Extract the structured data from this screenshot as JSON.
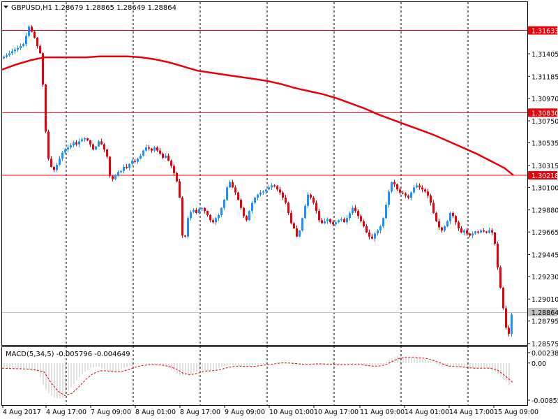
{
  "header": {
    "symbol": "GBPUSD,H1",
    "ohlc": "1.28679 1.28865 1.28649 1.28864"
  },
  "macd": {
    "label": "MACD(5,34,5) -0.005796 -0.004649",
    "ticks": [
      "0.002386",
      "0.00",
      "-0.008556"
    ]
  },
  "price_axis": {
    "ticks": [
      "1.31405",
      "1.31185",
      "1.30970",
      "1.30750",
      "1.30535",
      "1.30315",
      "1.30100",
      "1.29880",
      "1.29665",
      "1.29445",
      "1.29230",
      "1.29010",
      "1.28795",
      "1.28575"
    ],
    "current_price": "1.28864"
  },
  "levels": [
    {
      "label": "1.31633",
      "price": 1.31633
    },
    {
      "label": "1.30830",
      "price": 1.3083
    },
    {
      "label": "1.30218",
      "price": 1.30218
    }
  ],
  "time_axis": {
    "labels": [
      "4 Aug 2017",
      "4 Aug 17:00",
      "7 Aug 09:00",
      "8 Aug 01:00",
      "8 Aug 17:00",
      "9 Aug 09:00",
      "10 Aug 01:00",
      "10 Aug 17:00",
      "11 Aug 09:00",
      "14 Aug 01:00",
      "14 Aug 17:00",
      "15 Aug 09:00"
    ]
  },
  "colors": {
    "bull": "#1e90ff",
    "bear": "#e8000b",
    "level": "#e8000b",
    "ma": "#e8000b",
    "grid": "#000000",
    "macd_hist": "#c0c0c0",
    "macd_signal": "#e8000b"
  },
  "chart_data": {
    "type": "candlestick",
    "symbol": "GBPUSD",
    "timeframe": "H1",
    "ylim": [
      1.28575,
      1.3178
    ],
    "close_path": [
      [
        0,
        1.3136
      ],
      [
        8,
        1.3139
      ],
      [
        16,
        1.3143
      ],
      [
        24,
        1.3146
      ],
      [
        32,
        1.315
      ],
      [
        36,
        1.3158
      ],
      [
        40,
        1.3167
      ],
      [
        44,
        1.3162
      ],
      [
        48,
        1.3156
      ],
      [
        52,
        1.3148
      ],
      [
        56,
        1.3141
      ],
      [
        59,
        1.3139
      ],
      [
        61,
        1.3082
      ],
      [
        63,
        1.3072
      ],
      [
        65,
        1.3057
      ],
      [
        68,
        1.3038
      ],
      [
        72,
        1.303
      ],
      [
        76,
        1.3027
      ],
      [
        80,
        1.3032
      ],
      [
        84,
        1.3038
      ],
      [
        88,
        1.3044
      ],
      [
        92,
        1.3047
      ],
      [
        96,
        1.3049
      ],
      [
        100,
        1.3051
      ],
      [
        104,
        1.3054
      ],
      [
        108,
        1.3052
      ],
      [
        112,
        1.3055
      ],
      [
        116,
        1.3057
      ],
      [
        120,
        1.3058
      ],
      [
        124,
        1.3056
      ],
      [
        128,
        1.3052
      ],
      [
        132,
        1.3047
      ],
      [
        136,
        1.305
      ],
      [
        140,
        1.3055
      ],
      [
        144,
        1.3052
      ],
      [
        148,
        1.3047
      ],
      [
        152,
        1.304
      ],
      [
        156,
        1.3021
      ],
      [
        160,
        1.3018
      ],
      [
        164,
        1.3022
      ],
      [
        168,
        1.3025
      ],
      [
        172,
        1.3026
      ],
      [
        176,
        1.303
      ],
      [
        180,
        1.3029
      ],
      [
        184,
        1.3033
      ],
      [
        188,
        1.3036
      ],
      [
        192,
        1.3035
      ],
      [
        196,
        1.3038
      ],
      [
        200,
        1.3041
      ],
      [
        204,
        1.3046
      ],
      [
        208,
        1.3049
      ],
      [
        212,
        1.3048
      ],
      [
        216,
        1.3046
      ],
      [
        220,
        1.3049
      ],
      [
        224,
        1.3046
      ],
      [
        228,
        1.3043
      ],
      [
        232,
        1.3039
      ],
      [
        236,
        1.3041
      ],
      [
        240,
        1.3036
      ],
      [
        244,
        1.3031
      ],
      [
        248,
        1.3024
      ],
      [
        252,
        1.3016
      ],
      [
        256,
        1.3
      ],
      [
        258,
        1.2985
      ],
      [
        260,
        1.2963
      ],
      [
        262,
        1.2957
      ],
      [
        264,
        1.2962
      ],
      [
        266,
        1.297
      ],
      [
        268,
        1.298
      ],
      [
        272,
        1.2986
      ],
      [
        276,
        1.2988
      ],
      [
        280,
        1.2985
      ],
      [
        284,
        1.2989
      ],
      [
        288,
        1.299
      ],
      [
        292,
        1.2987
      ],
      [
        296,
        1.2983
      ],
      [
        300,
        1.2978
      ],
      [
        304,
        1.2976
      ],
      [
        308,
        1.298
      ],
      [
        312,
        1.2983
      ],
      [
        316,
        1.299
      ],
      [
        320,
        1.2998
      ],
      [
        324,
        1.301
      ],
      [
        328,
        1.3015
      ],
      [
        332,
        1.301
      ],
      [
        336,
        1.3005
      ],
      [
        340,
        1.2998
      ],
      [
        344,
        1.299
      ],
      [
        348,
        1.2982
      ],
      [
        352,
        1.2978
      ],
      [
        356,
        1.2987
      ],
      [
        360,
        1.2995
      ],
      [
        364,
        1.3
      ],
      [
        368,
        1.3003
      ],
      [
        372,
        1.3005
      ],
      [
        376,
        1.3006
      ],
      [
        380,
        1.3008
      ],
      [
        384,
        1.301
      ],
      [
        388,
        1.3012
      ],
      [
        392,
        1.3011
      ],
      [
        396,
        1.3008
      ],
      [
        400,
        1.3005
      ],
      [
        404,
        1.3
      ],
      [
        408,
        1.2995
      ],
      [
        412,
        1.2985
      ],
      [
        416,
        1.2975
      ],
      [
        420,
        1.297
      ],
      [
        424,
        1.2962
      ],
      [
        428,
        1.2968
      ],
      [
        432,
        1.298
      ],
      [
        436,
        1.2992
      ],
      [
        440,
        1.3003
      ],
      [
        444,
        1.3
      ],
      [
        448,
        1.2995
      ],
      [
        452,
        1.2987
      ],
      [
        456,
        1.2978
      ],
      [
        460,
        1.2975
      ],
      [
        464,
        1.2977
      ],
      [
        468,
        1.2979
      ],
      [
        472,
        1.2976
      ],
      [
        476,
        1.2974
      ],
      [
        480,
        1.2976
      ],
      [
        484,
        1.2978
      ],
      [
        488,
        1.2979
      ],
      [
        492,
        1.2976
      ],
      [
        496,
        1.298
      ],
      [
        500,
        1.2985
      ],
      [
        504,
        1.299
      ],
      [
        508,
        1.2987
      ],
      [
        512,
        1.2982
      ],
      [
        516,
        1.2977
      ],
      [
        520,
        1.2972
      ],
      [
        524,
        1.2966
      ],
      [
        528,
        1.2962
      ],
      [
        532,
        1.296
      ],
      [
        536,
        1.2965
      ],
      [
        540,
        1.2968
      ],
      [
        544,
        1.2972
      ],
      [
        548,
        1.298
      ],
      [
        552,
        1.2993
      ],
      [
        556,
        1.3006
      ],
      [
        560,
        1.3015
      ],
      [
        564,
        1.3013
      ],
      [
        568,
        1.3008
      ],
      [
        572,
        1.3005
      ],
      [
        576,
        1.3004
      ],
      [
        580,
        1.3002
      ],
      [
        584,
        1.3
      ],
      [
        588,
        1.3005
      ],
      [
        592,
        1.301
      ],
      [
        596,
        1.3012
      ],
      [
        600,
        1.301
      ],
      [
        604,
        1.3008
      ],
      [
        608,
        1.3006
      ],
      [
        612,
        1.3002
      ],
      [
        616,
        1.2995
      ],
      [
        620,
        1.2985
      ],
      [
        624,
        1.2977
      ],
      [
        628,
        1.2971
      ],
      [
        632,
        1.2968
      ],
      [
        636,
        1.2972
      ],
      [
        640,
        1.2977
      ],
      [
        644,
        1.2985
      ],
      [
        648,
        1.2982
      ],
      [
        652,
        1.2976
      ],
      [
        656,
        1.297
      ],
      [
        660,
        1.2966
      ],
      [
        664,
        1.2968
      ],
      [
        668,
        1.2965
      ],
      [
        672,
        1.2963
      ],
      [
        676,
        1.2965
      ],
      [
        680,
        1.2967
      ],
      [
        684,
        1.2966
      ],
      [
        688,
        1.2968
      ],
      [
        692,
        1.2967
      ],
      [
        696,
        1.2966
      ],
      [
        700,
        1.2968
      ],
      [
        704,
        1.2966
      ],
      [
        708,
        1.2955
      ],
      [
        710,
        1.2945
      ],
      [
        712,
        1.2932
      ],
      [
        714,
        1.2922
      ],
      [
        716,
        1.2912
      ],
      [
        718,
        1.2902
      ],
      [
        720,
        1.2892
      ],
      [
        722,
        1.288
      ],
      [
        724,
        1.2873
      ],
      [
        726,
        1.2869
      ],
      [
        728,
        1.2867
      ],
      [
        730,
        1.2886
      ]
    ],
    "moving_average": [
      [
        0,
        1.3125
      ],
      [
        20,
        1.313
      ],
      [
        40,
        1.3134
      ],
      [
        60,
        1.3137
      ],
      [
        80,
        1.3137
      ],
      [
        100,
        1.3137
      ],
      [
        120,
        1.3137
      ],
      [
        140,
        1.3138
      ],
      [
        160,
        1.3138
      ],
      [
        180,
        1.3138
      ],
      [
        200,
        1.3137
      ],
      [
        220,
        1.3135
      ],
      [
        240,
        1.3132
      ],
      [
        260,
        1.3128
      ],
      [
        280,
        1.3124
      ],
      [
        300,
        1.3122
      ],
      [
        320,
        1.312
      ],
      [
        340,
        1.3118
      ],
      [
        360,
        1.3116
      ],
      [
        380,
        1.3114
      ],
      [
        400,
        1.3111
      ],
      [
        420,
        1.3107
      ],
      [
        440,
        1.3104
      ],
      [
        460,
        1.3101
      ],
      [
        480,
        1.3097
      ],
      [
        500,
        1.3092
      ],
      [
        520,
        1.3087
      ],
      [
        540,
        1.3081
      ],
      [
        560,
        1.3076
      ],
      [
        580,
        1.3071
      ],
      [
        600,
        1.3066
      ],
      [
        620,
        1.3061
      ],
      [
        640,
        1.3055
      ],
      [
        660,
        1.3049
      ],
      [
        680,
        1.3043
      ],
      [
        700,
        1.3036
      ],
      [
        720,
        1.3029
      ],
      [
        733,
        1.3022
      ]
    ],
    "macd_hist": [
      [
        0,
        -0.001
      ],
      [
        20,
        -0.0012
      ],
      [
        40,
        -0.0015
      ],
      [
        55,
        -0.002
      ],
      [
        62,
        -0.005
      ],
      [
        70,
        -0.007
      ],
      [
        80,
        -0.0082
      ],
      [
        90,
        -0.008
      ],
      [
        100,
        -0.006
      ],
      [
        110,
        -0.004
      ],
      [
        120,
        -0.0022
      ],
      [
        130,
        -0.0012
      ],
      [
        140,
        -0.0008
      ],
      [
        150,
        -0.0015
      ],
      [
        160,
        -0.0022
      ],
      [
        170,
        -0.0018
      ],
      [
        180,
        -0.001
      ],
      [
        190,
        -0.0004
      ],
      [
        200,
        -0.0001
      ],
      [
        210,
        -0.0002
      ],
      [
        220,
        -0.0004
      ],
      [
        230,
        -0.0005
      ],
      [
        240,
        -0.001
      ],
      [
        250,
        -0.002
      ],
      [
        260,
        -0.003
      ],
      [
        270,
        -0.0028
      ],
      [
        280,
        -0.002
      ],
      [
        290,
        -0.0016
      ],
      [
        300,
        -0.0018
      ],
      [
        310,
        -0.0014
      ],
      [
        320,
        -0.0008
      ],
      [
        330,
        -0.0004
      ],
      [
        340,
        -0.0006
      ],
      [
        350,
        -0.001
      ],
      [
        360,
        -0.0008
      ],
      [
        370,
        -0.0004
      ],
      [
        380,
        -0.0002
      ],
      [
        390,
        0.0
      ],
      [
        400,
        0.0002
      ],
      [
        410,
        0.0001
      ],
      [
        420,
        -0.0002
      ],
      [
        430,
        -0.0004
      ],
      [
        440,
        -0.0002
      ],
      [
        450,
        -0.0001
      ],
      [
        460,
        -0.0003
      ],
      [
        470,
        -0.0004
      ],
      [
        480,
        -0.0005
      ],
      [
        490,
        -0.0004
      ],
      [
        500,
        -0.0002
      ],
      [
        510,
        -0.0003
      ],
      [
        520,
        -0.0006
      ],
      [
        530,
        -0.0008
      ],
      [
        540,
        -0.0006
      ],
      [
        550,
        -0.0002
      ],
      [
        560,
        0.001
      ],
      [
        570,
        0.0016
      ],
      [
        580,
        0.0014
      ],
      [
        590,
        0.0012
      ],
      [
        600,
        0.0012
      ],
      [
        610,
        0.0008
      ],
      [
        620,
        0.0002
      ],
      [
        630,
        -0.0006
      ],
      [
        640,
        -0.001
      ],
      [
        650,
        -0.0008
      ],
      [
        660,
        -0.001
      ],
      [
        670,
        -0.0012
      ],
      [
        680,
        -0.0013
      ],
      [
        690,
        -0.0012
      ],
      [
        700,
        -0.0012
      ],
      [
        710,
        -0.002
      ],
      [
        720,
        -0.0035
      ],
      [
        730,
        -0.005
      ]
    ],
    "macd_signal": [
      [
        0,
        -0.0012
      ],
      [
        20,
        -0.0013
      ],
      [
        40,
        -0.0014
      ],
      [
        60,
        -0.002
      ],
      [
        70,
        -0.0045
      ],
      [
        80,
        -0.0065
      ],
      [
        90,
        -0.0075
      ],
      [
        100,
        -0.007
      ],
      [
        110,
        -0.0055
      ],
      [
        120,
        -0.0038
      ],
      [
        130,
        -0.0025
      ],
      [
        140,
        -0.0018
      ],
      [
        150,
        -0.0018
      ],
      [
        160,
        -0.002
      ],
      [
        170,
        -0.002
      ],
      [
        180,
        -0.0016
      ],
      [
        190,
        -0.001
      ],
      [
        200,
        -0.0006
      ],
      [
        210,
        -0.0004
      ],
      [
        220,
        -0.0004
      ],
      [
        230,
        -0.0005
      ],
      [
        240,
        -0.0008
      ],
      [
        250,
        -0.0014
      ],
      [
        260,
        -0.0024
      ],
      [
        270,
        -0.0027
      ],
      [
        280,
        -0.0024
      ],
      [
        290,
        -0.0019
      ],
      [
        300,
        -0.0018
      ],
      [
        310,
        -0.0016
      ],
      [
        320,
        -0.0012
      ],
      [
        330,
        -0.0008
      ],
      [
        340,
        -0.0007
      ],
      [
        350,
        -0.0008
      ],
      [
        360,
        -0.0008
      ],
      [
        370,
        -0.0006
      ],
      [
        380,
        -0.0004
      ],
      [
        390,
        -0.0002
      ],
      [
        400,
        0.0
      ],
      [
        410,
        0.0
      ],
      [
        420,
        -0.0001
      ],
      [
        430,
        -0.0003
      ],
      [
        440,
        -0.0003
      ],
      [
        450,
        -0.0002
      ],
      [
        460,
        -0.0002
      ],
      [
        470,
        -0.0003
      ],
      [
        480,
        -0.0004
      ],
      [
        490,
        -0.0004
      ],
      [
        500,
        -0.0003
      ],
      [
        510,
        -0.0003
      ],
      [
        520,
        -0.0005
      ],
      [
        530,
        -0.0007
      ],
      [
        540,
        -0.0007
      ],
      [
        550,
        -0.0004
      ],
      [
        560,
        0.0004
      ],
      [
        570,
        0.0011
      ],
      [
        580,
        0.0013
      ],
      [
        590,
        0.0013
      ],
      [
        600,
        0.0012
      ],
      [
        610,
        0.001
      ],
      [
        620,
        0.0005
      ],
      [
        630,
        -0.0001
      ],
      [
        640,
        -0.0007
      ],
      [
        650,
        -0.0008
      ],
      [
        660,
        -0.0009
      ],
      [
        670,
        -0.0011
      ],
      [
        680,
        -0.0012
      ],
      [
        690,
        -0.0012
      ],
      [
        700,
        -0.0012
      ],
      [
        710,
        -0.0016
      ],
      [
        720,
        -0.0028
      ],
      [
        733,
        -0.0046
      ]
    ],
    "macd_range": [
      -0.008556,
      0.002386
    ]
  }
}
